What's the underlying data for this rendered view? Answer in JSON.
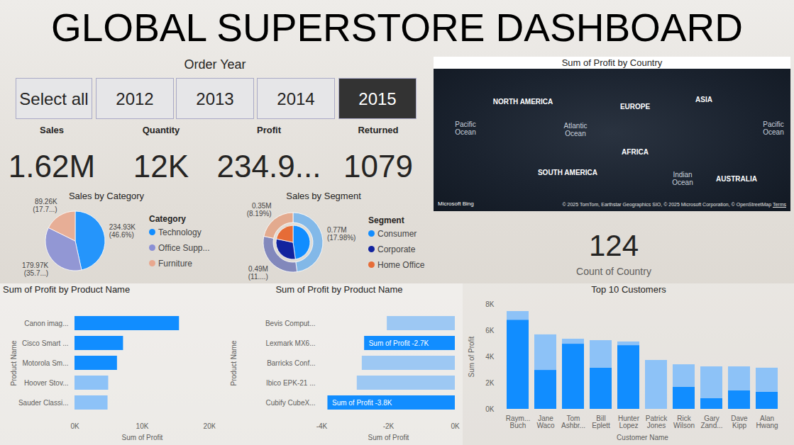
{
  "title": "GLOBAL SUPERSTORE DASHBOARD",
  "slicer": {
    "title": "Order Year",
    "options": [
      "Select all",
      "2012",
      "2013",
      "2014",
      "2015"
    ],
    "selected": "2015"
  },
  "cards": [
    {
      "label": "Sales",
      "value": "1.62M"
    },
    {
      "label": "Quantity",
      "value": "12K"
    },
    {
      "label": "Profit",
      "value": "234.9..."
    },
    {
      "label": "Returned",
      "value": "1079"
    },
    {
      "label": "Count of Country",
      "value": "124"
    }
  ],
  "map": {
    "title": "Sum of Profit by Country",
    "labels": [
      "NORTH AMERICA",
      "Pacific Ocean",
      "Atlantic Ocean",
      "EUROPE",
      "ASIA",
      "AFRICA",
      "SOUTH AMERICA",
      "Indian Ocean",
      "AUSTRALIA",
      "Pacific Ocean"
    ],
    "attribution": [
      "Microsoft Bing",
      "© 2025 TomTom, Earthstar Geographics SIO, © 2025 Microsoft Corporation, © OpenStreetMap",
      "Terms"
    ]
  },
  "chart_data": [
    {
      "type": "pie",
      "title": "Sales by Category",
      "categories": [
        "Technology",
        "Office Supp...",
        "Furniture"
      ],
      "values": [
        234930,
        179970,
        89260
      ],
      "value_labels": [
        "234.93K (46.6%)",
        "179.97K (35.7...)",
        "89.26K (17.7...)"
      ],
      "colors": [
        "#118DFF",
        "#8A8FD4",
        "#E8A88F"
      ],
      "data_labels": true,
      "legend": "right",
      "legend_title": "Category"
    },
    {
      "type": "donut",
      "title": "Sales by Segment",
      "categories": [
        "Consumer",
        "Corporate",
        "Home Office"
      ],
      "values": [
        770000,
        490000,
        350000
      ],
      "value_labels": [
        "0.77M (17.98%)",
        "0.49M (11....)",
        "0.35M (8.19%)"
      ],
      "colors": [
        "#118DFF",
        "#12239E",
        "#E66C37"
      ],
      "data_labels": true,
      "legend": "right",
      "legend_title": "Segment"
    },
    {
      "type": "bar",
      "orientation": "horizontal",
      "title": "Sum of Profit by Product Name",
      "categories": [
        "Canon imag...",
        "Cisco Smart ...",
        "Motorola Sm...",
        "Hoover Stov...",
        "Sauder Classi..."
      ],
      "values": [
        15500,
        7200,
        6300,
        5000,
        4900
      ],
      "colors": [
        "#118DFF",
        "#118DFF",
        "#118DFF",
        "#8DC2F7",
        "#8DC2F7"
      ],
      "xlabel": "Sum of Profit",
      "ylabel": "Product Name",
      "xlim": [
        0,
        20000
      ],
      "xticks": [
        {
          "value": 0,
          "label": "0K"
        },
        {
          "value": 10000,
          "label": "10K"
        },
        {
          "value": 20000,
          "label": "20K"
        }
      ],
      "grid": false
    },
    {
      "type": "bar",
      "orientation": "horizontal",
      "title": "Sum of Profit by Product Name",
      "categories": [
        "Bevis Comput...",
        "Lexmark MX6...",
        "Barricks Conf...",
        "Ibico EPK-21 ...",
        "Cubify CubeX..."
      ],
      "values": [
        -2040,
        -2720,
        -2790,
        -2940,
        -3820
      ],
      "value_labels": [
        null,
        "Sum of Profit -2.7K",
        null,
        null,
        "Sum of Profit -3.8K"
      ],
      "data_labels": true,
      "colors": [
        "#9DC8F3",
        "#118DFF",
        "#9DC8F3",
        "#9DC8F3",
        "#118DFF"
      ],
      "xlabel": "Sum of Profit",
      "ylabel": "Product Name",
      "xlim": [
        -4000,
        0
      ],
      "xticks": [
        {
          "value": -4000,
          "label": "-4K"
        },
        {
          "value": -2000,
          "label": "-2K"
        },
        {
          "value": 0,
          "label": "0K"
        }
      ],
      "grid": false
    },
    {
      "type": "bar",
      "title": "Top 10 Customers",
      "stacked": true,
      "categories": [
        "Raym... Buch",
        "Jane Waco",
        "Tom Ashbr...",
        "Bill Eplett",
        "Hunter Lopez",
        "Patrick Jones",
        "Rick Wilson",
        "Gary Zand...",
        "Dave Kipp",
        "Alan Hwang"
      ],
      "series": [
        {
          "color": "#118DFF",
          "values": [
            6800,
            2970,
            4970,
            3140,
            4860,
            0,
            1680,
            810,
            1410,
            1300
          ]
        },
        {
          "color": "#8DC2F7",
          "values": [
            660,
            2710,
            380,
            2100,
            280,
            3730,
            1720,
            2430,
            1830,
            1840
          ]
        }
      ],
      "xlabel": "Customer Name",
      "ylabel": "Sum of Profit",
      "ylim": [
        0,
        8000
      ],
      "yticks": [
        {
          "value": 0,
          "label": "0K"
        },
        {
          "value": 2000,
          "label": "2K"
        },
        {
          "value": 4000,
          "label": "4K"
        },
        {
          "value": 6000,
          "label": "6K"
        },
        {
          "value": 8000,
          "label": "8K"
        }
      ],
      "grid": false
    }
  ]
}
